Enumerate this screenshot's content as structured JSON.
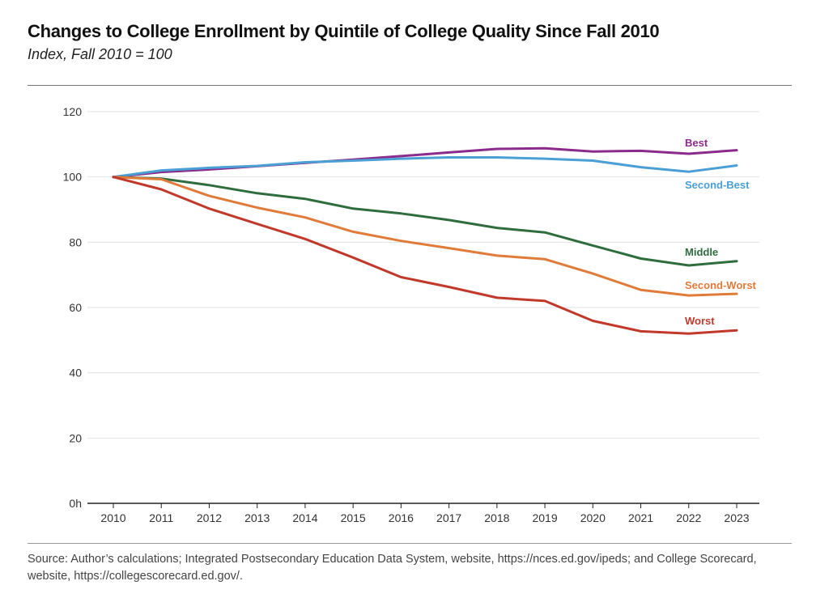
{
  "header": {
    "title": "Changes to College Enrollment by Quintile of College Quality Since Fall 2010",
    "subtitle": "Index, Fall 2010 = 100"
  },
  "footer": {
    "source": "Source: Author’s calculations; Integrated Postsecondary Education Data System, website, https://nces.ed.gov/ipeds; and College Scorecard, website, https://collegescorecard.ed.gov/."
  },
  "chart_data": {
    "type": "line",
    "title": "Changes to College Enrollment by Quintile of College Quality Since Fall 2010",
    "subtitle": "Index, Fall 2010 = 100",
    "xlabel": "",
    "ylabel": "",
    "ylim": [
      0,
      120
    ],
    "y_ticks": [
      "0h",
      "20",
      "40",
      "60",
      "80",
      "100",
      "120"
    ],
    "grid": true,
    "x": [
      "2010",
      "2011",
      "2012",
      "2013",
      "2014",
      "2015",
      "2016",
      "2017",
      "2018",
      "2019",
      "2020",
      "2021",
      "2022",
      "2023"
    ],
    "series": [
      {
        "name": "Best",
        "color": "#8b2b8c",
        "values": [
          100,
          101.5,
          102.3,
          103.3,
          104.3,
          105.3,
          106.4,
          107.5,
          108.6,
          108.8,
          107.8,
          108.0,
          107.1,
          108.2
        ]
      },
      {
        "name": "Second-Best",
        "color": "#4a9fd5",
        "values": [
          100,
          102.0,
          102.8,
          103.4,
          104.5,
          105.0,
          105.6,
          106.0,
          106.0,
          105.6,
          105.0,
          103.0,
          101.6,
          103.5
        ]
      },
      {
        "name": "Middle",
        "color": "#2f6d3f",
        "values": [
          100,
          99.5,
          97.5,
          95.0,
          93.3,
          90.3,
          88.8,
          86.8,
          84.4,
          83.0,
          79.0,
          75.0,
          72.9,
          74.2
        ]
      },
      {
        "name": "Second-Worst",
        "color": "#e07b39",
        "values": [
          100,
          99.3,
          94.2,
          90.6,
          87.6,
          83.2,
          80.4,
          78.2,
          75.9,
          74.8,
          70.4,
          65.4,
          63.7,
          64.2
        ]
      },
      {
        "name": "Worst",
        "color": "#c0392b",
        "values": [
          100,
          96.2,
          90.3,
          85.6,
          81.0,
          75.3,
          69.3,
          66.3,
          63.0,
          62.0,
          55.9,
          52.7,
          52.0,
          53.0
        ]
      }
    ]
  }
}
